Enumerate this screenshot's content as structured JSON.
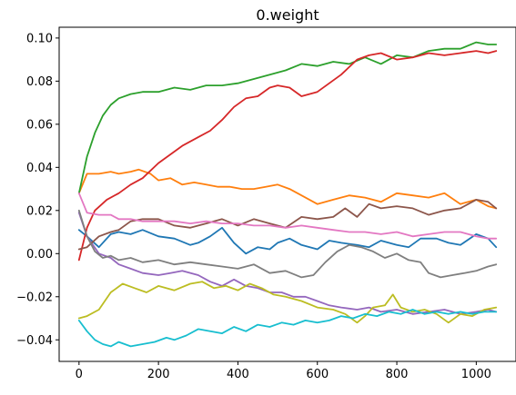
{
  "chart_data": {
    "type": "line",
    "title": "0.weight",
    "xlabel": "",
    "ylabel": "",
    "xlim": [
      -50,
      1100
    ],
    "ylim": [
      -0.05,
      0.105
    ],
    "xticks": [
      0,
      200,
      400,
      600,
      800,
      1000
    ],
    "xtick_labels": [
      "0",
      "200",
      "400",
      "600",
      "800",
      "1000"
    ],
    "yticks": [
      -0.04,
      -0.02,
      0.0,
      0.02,
      0.04,
      0.06,
      0.08,
      0.1
    ],
    "ytick_labels": [
      "−0.04",
      "−0.02",
      "0.00",
      "0.02",
      "0.04",
      "0.06",
      "0.08",
      "0.10"
    ],
    "grid": false,
    "legend": false,
    "series": [
      {
        "color": "#1f77b4",
        "x": [
          0,
          20,
          50,
          80,
          100,
          130,
          160,
          200,
          240,
          280,
          300,
          330,
          360,
          390,
          420,
          450,
          480,
          500,
          530,
          560,
          600,
          630,
          660,
          700,
          730,
          760,
          800,
          830,
          860,
          900,
          930,
          960,
          1000,
          1030,
          1050
        ],
        "y": [
          0.011,
          0.008,
          0.003,
          0.009,
          0.01,
          0.009,
          0.011,
          0.008,
          0.007,
          0.004,
          0.005,
          0.008,
          0.012,
          0.005,
          0.0,
          0.003,
          0.002,
          0.005,
          0.007,
          0.004,
          0.002,
          0.006,
          0.005,
          0.004,
          0.003,
          0.006,
          0.004,
          0.003,
          0.007,
          0.007,
          0.005,
          0.004,
          0.009,
          0.007,
          0.003
        ]
      },
      {
        "color": "#ff7f0e",
        "x": [
          0,
          20,
          50,
          80,
          100,
          130,
          150,
          180,
          200,
          230,
          260,
          290,
          320,
          350,
          380,
          410,
          440,
          470,
          500,
          530,
          560,
          600,
          640,
          680,
          720,
          760,
          800,
          840,
          880,
          920,
          960,
          1000,
          1030,
          1050
        ],
        "y": [
          0.028,
          0.037,
          0.037,
          0.038,
          0.037,
          0.038,
          0.039,
          0.037,
          0.034,
          0.035,
          0.032,
          0.033,
          0.032,
          0.031,
          0.031,
          0.03,
          0.03,
          0.031,
          0.032,
          0.03,
          0.027,
          0.023,
          0.025,
          0.027,
          0.026,
          0.024,
          0.028,
          0.027,
          0.026,
          0.028,
          0.023,
          0.025,
          0.022,
          0.021
        ]
      },
      {
        "color": "#2ca02c",
        "x": [
          0,
          20,
          40,
          60,
          80,
          100,
          130,
          160,
          200,
          240,
          280,
          320,
          360,
          400,
          440,
          480,
          520,
          560,
          600,
          640,
          680,
          720,
          760,
          800,
          840,
          880,
          920,
          960,
          1000,
          1030,
          1050
        ],
        "y": [
          0.028,
          0.045,
          0.056,
          0.064,
          0.069,
          0.072,
          0.074,
          0.075,
          0.075,
          0.077,
          0.076,
          0.078,
          0.078,
          0.079,
          0.081,
          0.083,
          0.085,
          0.088,
          0.087,
          0.089,
          0.088,
          0.091,
          0.088,
          0.092,
          0.091,
          0.094,
          0.095,
          0.095,
          0.098,
          0.097,
          0.097
        ]
      },
      {
        "color": "#d62728",
        "x": [
          0,
          20,
          40,
          70,
          100,
          130,
          160,
          200,
          230,
          260,
          300,
          330,
          360,
          390,
          420,
          450,
          480,
          500,
          530,
          560,
          600,
          630,
          660,
          700,
          730,
          760,
          800,
          840,
          880,
          920,
          960,
          1000,
          1030,
          1050
        ],
        "y": [
          -0.003,
          0.012,
          0.02,
          0.025,
          0.028,
          0.032,
          0.035,
          0.042,
          0.046,
          0.05,
          0.054,
          0.057,
          0.062,
          0.068,
          0.072,
          0.073,
          0.077,
          0.078,
          0.077,
          0.073,
          0.075,
          0.079,
          0.083,
          0.09,
          0.092,
          0.093,
          0.09,
          0.091,
          0.093,
          0.092,
          0.093,
          0.094,
          0.093,
          0.094
        ]
      },
      {
        "color": "#9467bd",
        "x": [
          0,
          20,
          50,
          80,
          100,
          130,
          160,
          200,
          230,
          260,
          300,
          330,
          360,
          390,
          420,
          450,
          480,
          510,
          540,
          570,
          600,
          630,
          660,
          700,
          730,
          760,
          800,
          840,
          880,
          920,
          960,
          1000,
          1030,
          1050
        ],
        "y": [
          0.019,
          0.008,
          0.0,
          -0.002,
          -0.005,
          -0.007,
          -0.009,
          -0.01,
          -0.009,
          -0.008,
          -0.01,
          -0.013,
          -0.015,
          -0.012,
          -0.015,
          -0.016,
          -0.018,
          -0.018,
          -0.02,
          -0.02,
          -0.022,
          -0.024,
          -0.025,
          -0.026,
          -0.025,
          -0.027,
          -0.026,
          -0.028,
          -0.027,
          -0.026,
          -0.028,
          -0.027,
          -0.026,
          -0.027
        ]
      },
      {
        "color": "#8c564b",
        "x": [
          0,
          20,
          50,
          80,
          100,
          130,
          160,
          200,
          240,
          280,
          320,
          360,
          400,
          440,
          480,
          520,
          560,
          600,
          640,
          670,
          700,
          730,
          760,
          800,
          840,
          880,
          920,
          960,
          1000,
          1030,
          1050
        ],
        "y": [
          0.002,
          0.003,
          0.008,
          0.01,
          0.011,
          0.015,
          0.016,
          0.016,
          0.013,
          0.012,
          0.014,
          0.016,
          0.013,
          0.016,
          0.014,
          0.012,
          0.017,
          0.016,
          0.017,
          0.021,
          0.017,
          0.023,
          0.021,
          0.022,
          0.021,
          0.018,
          0.02,
          0.021,
          0.025,
          0.024,
          0.021
        ]
      },
      {
        "color": "#e377c2",
        "x": [
          0,
          20,
          50,
          80,
          100,
          130,
          160,
          200,
          240,
          280,
          320,
          360,
          400,
          440,
          480,
          520,
          560,
          600,
          640,
          680,
          720,
          760,
          800,
          840,
          880,
          920,
          960,
          1000,
          1030,
          1050
        ],
        "y": [
          0.028,
          0.019,
          0.018,
          0.018,
          0.016,
          0.016,
          0.015,
          0.015,
          0.015,
          0.014,
          0.015,
          0.014,
          0.014,
          0.013,
          0.013,
          0.012,
          0.013,
          0.012,
          0.011,
          0.01,
          0.01,
          0.009,
          0.01,
          0.008,
          0.009,
          0.01,
          0.01,
          0.008,
          0.007,
          0.007
        ]
      },
      {
        "color": "#7f7f7f",
        "x": [
          0,
          20,
          40,
          60,
          80,
          100,
          130,
          160,
          200,
          240,
          280,
          320,
          360,
          400,
          440,
          480,
          520,
          560,
          590,
          620,
          650,
          680,
          710,
          740,
          770,
          800,
          830,
          860,
          880,
          910,
          940,
          970,
          1000,
          1030,
          1050
        ],
        "y": [
          0.02,
          0.008,
          0.001,
          -0.002,
          -0.001,
          -0.003,
          -0.002,
          -0.004,
          -0.003,
          -0.005,
          -0.004,
          -0.005,
          -0.006,
          -0.007,
          -0.005,
          -0.009,
          -0.008,
          -0.011,
          -0.01,
          -0.004,
          0.001,
          0.004,
          0.003,
          0.001,
          -0.002,
          0.0,
          -0.003,
          -0.004,
          -0.009,
          -0.011,
          -0.01,
          -0.009,
          -0.008,
          -0.006,
          -0.005
        ]
      },
      {
        "color": "#bcbd22",
        "x": [
          0,
          20,
          50,
          80,
          110,
          140,
          170,
          200,
          240,
          280,
          310,
          340,
          370,
          400,
          430,
          460,
          490,
          520,
          560,
          600,
          640,
          670,
          700,
          720,
          740,
          770,
          790,
          810,
          840,
          870,
          900,
          930,
          960,
          990,
          1020,
          1050
        ],
        "y": [
          -0.03,
          -0.029,
          -0.026,
          -0.018,
          -0.014,
          -0.016,
          -0.018,
          -0.015,
          -0.017,
          -0.014,
          -0.013,
          -0.016,
          -0.015,
          -0.017,
          -0.014,
          -0.016,
          -0.019,
          -0.02,
          -0.022,
          -0.025,
          -0.026,
          -0.028,
          -0.032,
          -0.029,
          -0.025,
          -0.024,
          -0.019,
          -0.025,
          -0.027,
          -0.026,
          -0.028,
          -0.032,
          -0.028,
          -0.029,
          -0.026,
          -0.025
        ]
      },
      {
        "color": "#17becf",
        "x": [
          0,
          20,
          40,
          60,
          80,
          100,
          130,
          160,
          190,
          220,
          240,
          270,
          300,
          330,
          360,
          390,
          420,
          450,
          480,
          510,
          540,
          570,
          600,
          630,
          660,
          690,
          720,
          750,
          780,
          810,
          840,
          870,
          900,
          930,
          960,
          990,
          1020,
          1050
        ],
        "y": [
          -0.031,
          -0.036,
          -0.04,
          -0.042,
          -0.043,
          -0.041,
          -0.043,
          -0.042,
          -0.041,
          -0.039,
          -0.04,
          -0.038,
          -0.035,
          -0.036,
          -0.037,
          -0.034,
          -0.036,
          -0.033,
          -0.034,
          -0.032,
          -0.033,
          -0.031,
          -0.032,
          -0.031,
          -0.029,
          -0.03,
          -0.028,
          -0.029,
          -0.027,
          -0.028,
          -0.026,
          -0.028,
          -0.027,
          -0.028,
          -0.027,
          -0.028,
          -0.027,
          -0.027
        ]
      }
    ]
  }
}
